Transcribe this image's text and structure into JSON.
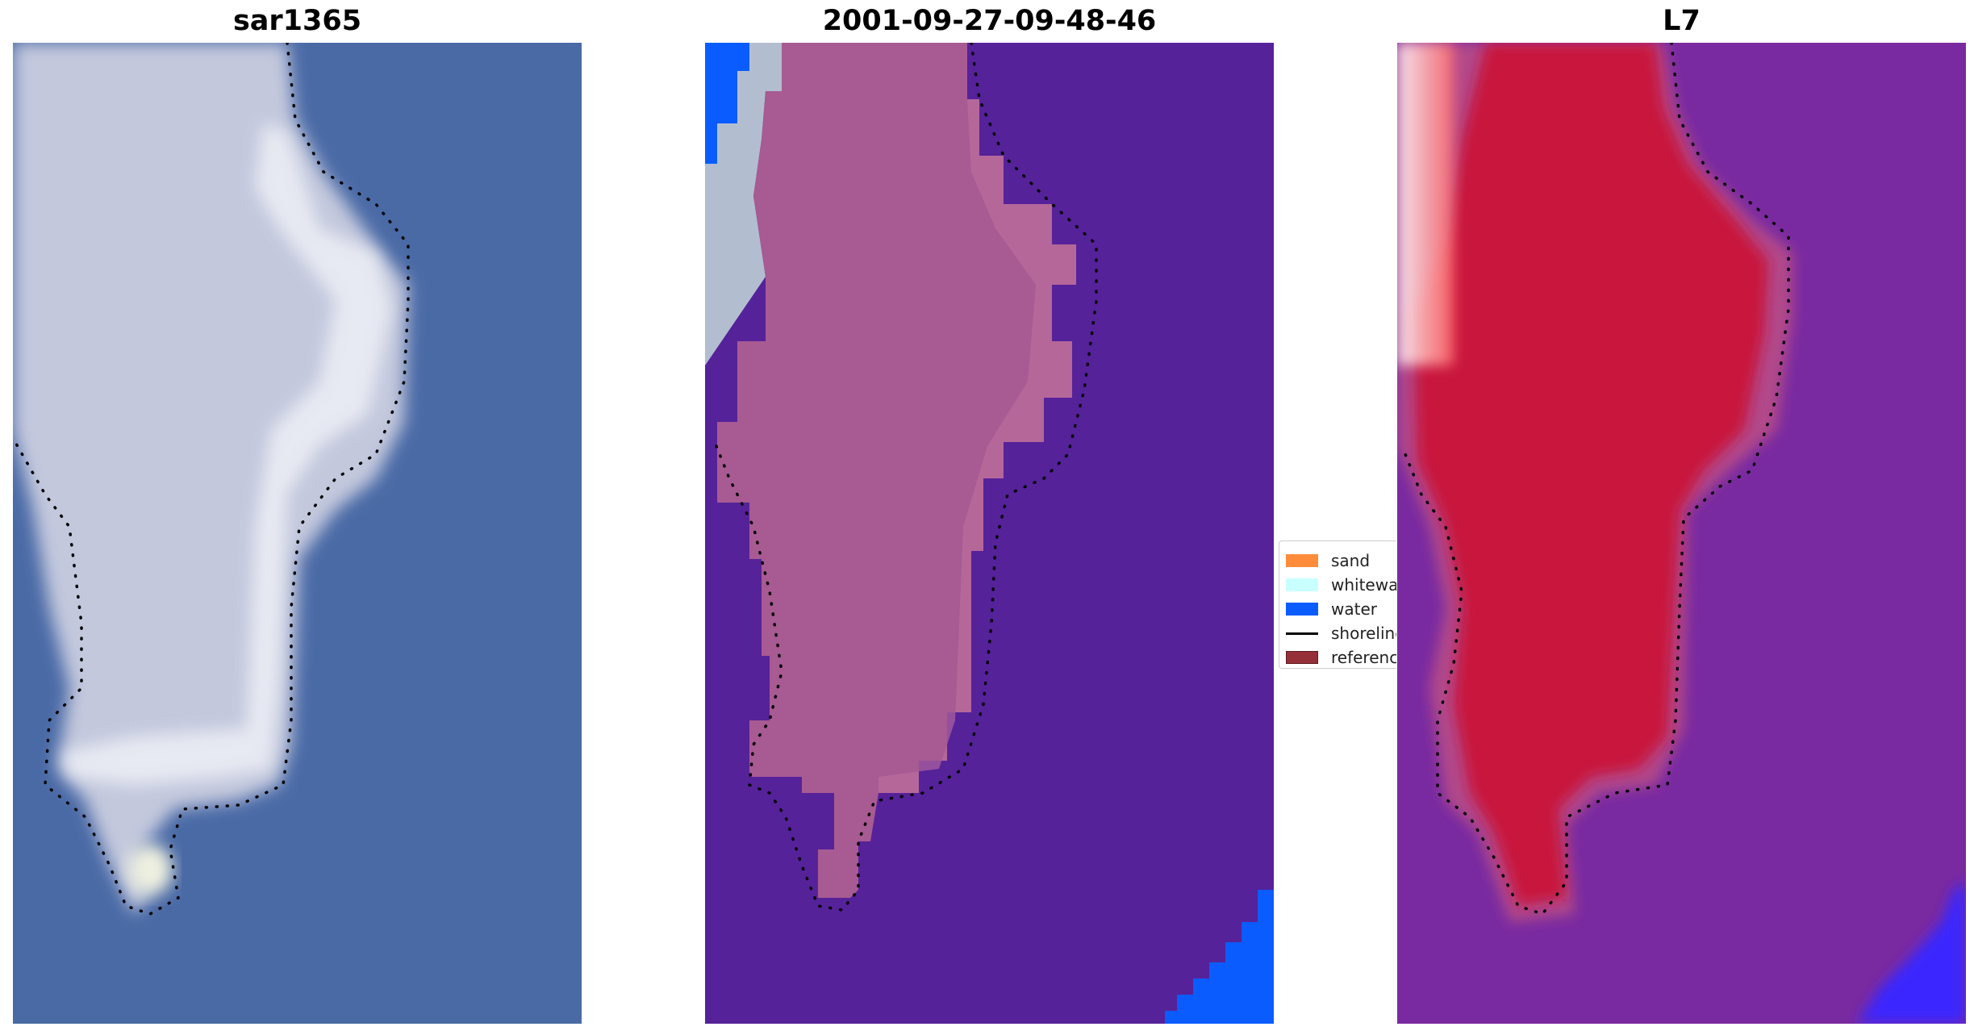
{
  "panels": [
    {
      "title": "sar1365",
      "kind": "rgb"
    },
    {
      "title": "2001-09-27-09-48-46",
      "kind": "classified"
    },
    {
      "title": "L7",
      "kind": "mndwi"
    }
  ],
  "legend": {
    "items": [
      {
        "label": "sand",
        "color": "#ff8c3a",
        "type": "patch"
      },
      {
        "label": "whitewater",
        "color": "#c8ffff",
        "type": "patch"
      },
      {
        "label": "water",
        "color": "#0a5cff",
        "type": "patch"
      },
      {
        "label": "shoreline",
        "color": "#000000",
        "type": "line"
      },
      {
        "label": "reference shoreline",
        "color": "#963038",
        "type": "patch"
      }
    ]
  },
  "colors": {
    "ocean_rgb": "#4a6aa6",
    "land_rgb": "#c9cbe0",
    "classified_background": "#55229a",
    "classified_land": "#a85a92",
    "mndwi_background": "#7a2aa0",
    "mndwi_land": "#c8123e",
    "water_class": "#0a5cff"
  }
}
